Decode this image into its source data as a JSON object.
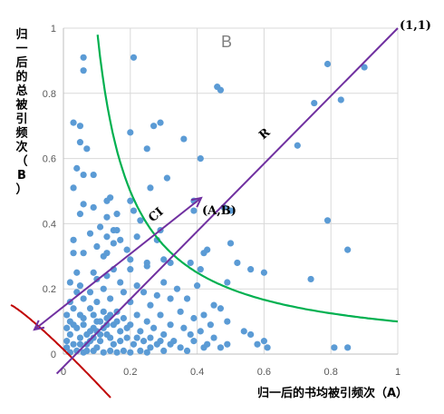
{
  "chart_data": {
    "type": "scatter",
    "title": "",
    "xlabel": "归一后的书均被引频次（A）",
    "ylabel": "归一后的总被引频次（B）",
    "xlim": [
      0,
      1
    ],
    "ylim": [
      0,
      1
    ],
    "x_ticks": [
      "0",
      "0.2",
      "0.4",
      "0.6",
      "0.8",
      "1"
    ],
    "y_ticks": [
      "0",
      "0.2",
      "0.4",
      "0.6",
      "0.8",
      "1"
    ],
    "grid": "vertical and horizontal",
    "colors": {
      "points": "#5b9bd5",
      "diagonal": "#7030a0",
      "curve": "#00b050",
      "lower_curve": "#c00000",
      "grid": "#d9d9d9"
    },
    "annotations": {
      "region": "B",
      "corner": "(1,1)",
      "r_label": "R",
      "ci_label": "CI",
      "point_label": "(A,B)"
    },
    "highlight_point": [
      0.39,
      0.44
    ],
    "curve_xy_constant": 0.1,
    "series": [
      {
        "points": [
          [
            0.06,
            0.91
          ],
          [
            0.21,
            0.91
          ],
          [
            0.06,
            0.87
          ],
          [
            0.79,
            0.89
          ],
          [
            0.9,
            0.88
          ],
          [
            0.46,
            0.82
          ],
          [
            0.47,
            0.81
          ],
          [
            0.83,
            0.78
          ],
          [
            0.75,
            0.77
          ],
          [
            0.03,
            0.71
          ],
          [
            0.05,
            0.7
          ],
          [
            0.29,
            0.71
          ],
          [
            0.2,
            0.68
          ],
          [
            0.27,
            0.7
          ],
          [
            0.36,
            0.66
          ],
          [
            0.05,
            0.65
          ],
          [
            0.07,
            0.63
          ],
          [
            0.25,
            0.63
          ],
          [
            0.7,
            0.64
          ],
          [
            0.41,
            0.6
          ],
          [
            0.04,
            0.57
          ],
          [
            0.06,
            0.55
          ],
          [
            0.09,
            0.55
          ],
          [
            0.31,
            0.54
          ],
          [
            0.26,
            0.51
          ],
          [
            0.03,
            0.51
          ],
          [
            0.14,
            0.48
          ],
          [
            0.13,
            0.47
          ],
          [
            0.06,
            0.46
          ],
          [
            0.09,
            0.45
          ],
          [
            0.2,
            0.47
          ],
          [
            0.05,
            0.43
          ],
          [
            0.13,
            0.42
          ],
          [
            0.16,
            0.43
          ],
          [
            0.21,
            0.44
          ],
          [
            0.23,
            0.41
          ],
          [
            0.39,
            0.47
          ],
          [
            0.48,
            0.45
          ],
          [
            0.5,
            0.44
          ],
          [
            0.11,
            0.39
          ],
          [
            0.15,
            0.38
          ],
          [
            0.16,
            0.38
          ],
          [
            0.29,
            0.38
          ],
          [
            0.79,
            0.41
          ],
          [
            0.08,
            0.37
          ],
          [
            0.13,
            0.36
          ],
          [
            0.03,
            0.35
          ],
          [
            0.22,
            0.36
          ],
          [
            0.1,
            0.33
          ],
          [
            0.15,
            0.34
          ],
          [
            0.17,
            0.35
          ],
          [
            0.28,
            0.35
          ],
          [
            0.43,
            0.32
          ],
          [
            0.5,
            0.34
          ],
          [
            0.03,
            0.31
          ],
          [
            0.06,
            0.31
          ],
          [
            0.13,
            0.31
          ],
          [
            0.19,
            0.32
          ],
          [
            0.42,
            0.31
          ],
          [
            0.85,
            0.32
          ],
          [
            0.12,
            0.3
          ],
          [
            0.2,
            0.29
          ],
          [
            0.25,
            0.28
          ],
          [
            0.32,
            0.28
          ],
          [
            0.38,
            0.28
          ],
          [
            0.3,
            0.29
          ],
          [
            0.41,
            0.26
          ],
          [
            0.52,
            0.28
          ],
          [
            0.56,
            0.26
          ],
          [
            0.6,
            0.25
          ],
          [
            0.04,
            0.25
          ],
          [
            0.09,
            0.25
          ],
          [
            0.15,
            0.26
          ],
          [
            0.2,
            0.26
          ],
          [
            0.25,
            0.27
          ],
          [
            0.74,
            0.23
          ],
          [
            0.49,
            0.22
          ],
          [
            0.4,
            0.21
          ],
          [
            0.02,
            0.22
          ],
          [
            0.05,
            0.21
          ],
          [
            0.1,
            0.23
          ],
          [
            0.13,
            0.24
          ],
          [
            0.17,
            0.22
          ],
          [
            0.22,
            0.21
          ],
          [
            0.3,
            0.22
          ],
          [
            0.34,
            0.2
          ],
          [
            0.04,
            0.19
          ],
          [
            0.08,
            0.19
          ],
          [
            0.12,
            0.2
          ],
          [
            0.18,
            0.19
          ],
          [
            0.24,
            0.19
          ],
          [
            0.28,
            0.18
          ],
          [
            0.32,
            0.17
          ],
          [
            0.37,
            0.17
          ],
          [
            0.45,
            0.15
          ],
          [
            0.02,
            0.16
          ],
          [
            0.06,
            0.17
          ],
          [
            0.1,
            0.16
          ],
          [
            0.14,
            0.17
          ],
          [
            0.2,
            0.16
          ],
          [
            0.26,
            0.15
          ],
          [
            0.35,
            0.13
          ],
          [
            0.42,
            0.12
          ],
          [
            0.47,
            0.14
          ],
          [
            0.03,
            0.14
          ],
          [
            0.08,
            0.14
          ],
          [
            0.12,
            0.13
          ],
          [
            0.16,
            0.13
          ],
          [
            0.22,
            0.12
          ],
          [
            0.29,
            0.12
          ],
          [
            0.39,
            0.11
          ],
          [
            0.49,
            0.1
          ],
          [
            0.01,
            0.12
          ],
          [
            0.05,
            0.12
          ],
          [
            0.09,
            0.12
          ],
          [
            0.13,
            0.11
          ],
          [
            0.18,
            0.11
          ],
          [
            0.25,
            0.1
          ],
          [
            0.32,
            0.09
          ],
          [
            0.44,
            0.09
          ],
          [
            0.02,
            0.1
          ],
          [
            0.06,
            0.09
          ],
          [
            0.1,
            0.1
          ],
          [
            0.15,
            0.09
          ],
          [
            0.2,
            0.09
          ],
          [
            0.27,
            0.08
          ],
          [
            0.36,
            0.08
          ],
          [
            0.41,
            0.07
          ],
          [
            0.54,
            0.07
          ],
          [
            0.01,
            0.08
          ],
          [
            0.04,
            0.08
          ],
          [
            0.08,
            0.07
          ],
          [
            0.12,
            0.08
          ],
          [
            0.17,
            0.07
          ],
          [
            0.23,
            0.07
          ],
          [
            0.3,
            0.06
          ],
          [
            0.38,
            0.06
          ],
          [
            0.45,
            0.05
          ],
          [
            0.56,
            0.06
          ],
          [
            0.6,
            0.04
          ],
          [
            0.02,
            0.06
          ],
          [
            0.05,
            0.05
          ],
          [
            0.09,
            0.05
          ],
          [
            0.13,
            0.06
          ],
          [
            0.19,
            0.05
          ],
          [
            0.26,
            0.05
          ],
          [
            0.33,
            0.04
          ],
          [
            0.39,
            0.04
          ],
          [
            0.43,
            0.03
          ],
          [
            0.49,
            0.03
          ],
          [
            0.58,
            0.03
          ],
          [
            0.01,
            0.04
          ],
          [
            0.03,
            0.03
          ],
          [
            0.07,
            0.03
          ],
          [
            0.11,
            0.04
          ],
          [
            0.15,
            0.03
          ],
          [
            0.21,
            0.03
          ],
          [
            0.28,
            0.03
          ],
          [
            0.35,
            0.02
          ],
          [
            0.42,
            0.02
          ],
          [
            0.47,
            0.02
          ],
          [
            0.61,
            0.02
          ],
          [
            0.81,
            0.02
          ],
          [
            0.85,
            0.02
          ],
          [
            0.01,
            0.02
          ],
          [
            0.04,
            0.01
          ],
          [
            0.07,
            0.01
          ],
          [
            0.1,
            0.02
          ],
          [
            0.14,
            0.01
          ],
          [
            0.18,
            0.01
          ],
          [
            0.23,
            0.01
          ],
          [
            0.3,
            0.01
          ],
          [
            0.37,
            0.01
          ],
          [
            0.02,
            0.005
          ],
          [
            0.06,
            0.005
          ],
          [
            0.09,
            0.01
          ],
          [
            0.12,
            0.005
          ],
          [
            0.16,
            0.005
          ],
          [
            0.2,
            0.005
          ],
          [
            0.25,
            0.005
          ],
          [
            0.05,
            0.03
          ],
          [
            0.08,
            0.04
          ],
          [
            0.11,
            0.06
          ],
          [
            0.14,
            0.05
          ],
          [
            0.17,
            0.04
          ],
          [
            0.07,
            0.06
          ],
          [
            0.1,
            0.07
          ],
          [
            0.13,
            0.09
          ],
          [
            0.16,
            0.1
          ],
          [
            0.19,
            0.08
          ],
          [
            0.03,
            0.09
          ],
          [
            0.06,
            0.11
          ],
          [
            0.09,
            0.08
          ],
          [
            0.11,
            0.1
          ],
          [
            0.14,
            0.12
          ],
          [
            0.22,
            0.05
          ],
          [
            0.24,
            0.04
          ],
          [
            0.26,
            0.02
          ],
          [
            0.29,
            0.04
          ],
          [
            0.32,
            0.03
          ]
        ]
      }
    ]
  }
}
